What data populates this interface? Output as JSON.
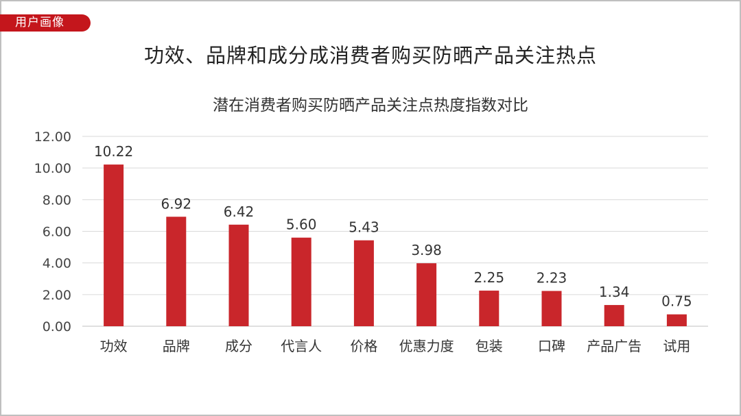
{
  "header": {
    "tag_label": "用户画像",
    "headline": "功效、品牌和成分成消费者购买防晒产品关注热点"
  },
  "colors": {
    "accent": "#c4161c",
    "bar": "#c9262b",
    "grid": "#d9d9d9",
    "frame": "#bfbfbf"
  },
  "chart_data": {
    "type": "bar",
    "title": "潜在消费者购买防晒产品关注点热度指数对比",
    "categories": [
      "功效",
      "品牌",
      "成分",
      "代言人",
      "价格",
      "优惠力度",
      "包装",
      "口碑",
      "产品广告",
      "试用"
    ],
    "values": [
      10.22,
      6.92,
      6.42,
      5.6,
      5.43,
      3.98,
      2.25,
      2.23,
      1.34,
      0.75
    ],
    "value_labels": [
      "10.22",
      "6.92",
      "6.42",
      "5.60",
      "5.43",
      "3.98",
      "2.25",
      "2.23",
      "1.34",
      "0.75"
    ],
    "y_ticks": [
      "0.00",
      "2.00",
      "4.00",
      "6.00",
      "8.00",
      "10.00",
      "12.00"
    ],
    "ylim": [
      0,
      12
    ],
    "xlabel": "",
    "ylabel": "",
    "grid": true,
    "legend": "none"
  }
}
